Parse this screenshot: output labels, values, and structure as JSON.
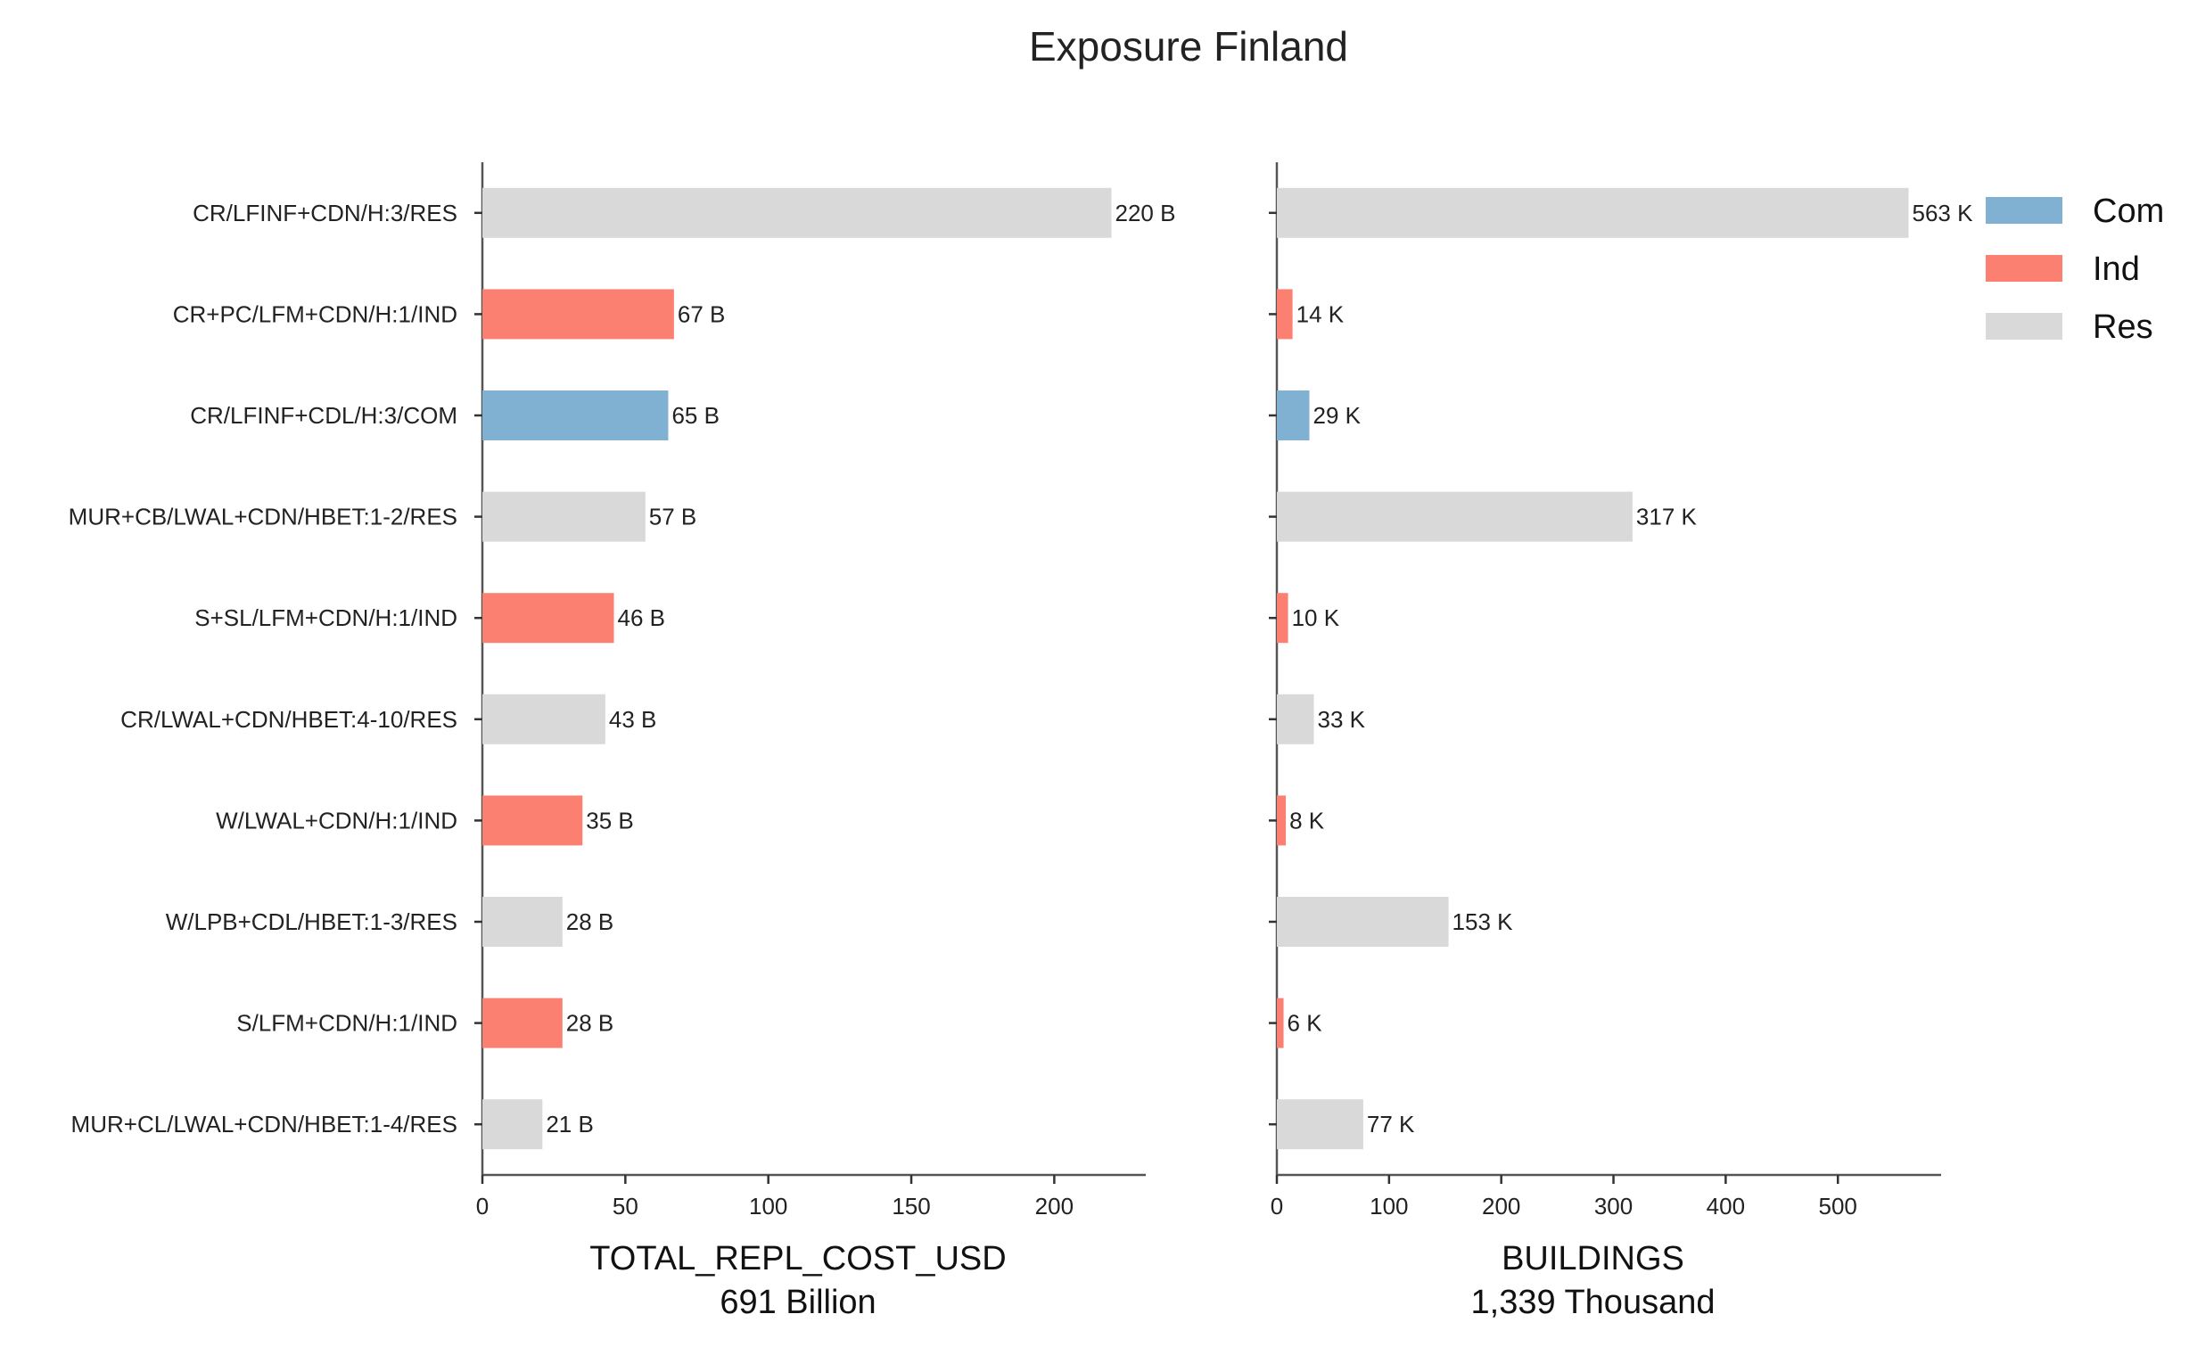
{
  "title": "Exposure Finland",
  "chart_data": [
    {
      "type": "bar",
      "orientation": "horizontal",
      "categories": [
        "CR/LFINF+CDN/H:3/RES",
        "CR+PC/LFM+CDN/H:1/IND",
        "CR/LFINF+CDL/H:3/COM",
        "MUR+CB/LWAL+CDN/HBET:1-2/RES",
        "S+SL/LFM+CDN/H:1/IND",
        "CR/LWAL+CDN/HBET:4-10/RES",
        "W/LWAL+CDN/H:1/IND",
        "W/LPB+CDL/HBET:1-3/RES",
        "S/LFM+CDN/H:1/IND",
        "MUR+CL/LWAL+CDN/HBET:1-4/RES"
      ],
      "groups": [
        "Res",
        "Ind",
        "Com",
        "Res",
        "Ind",
        "Res",
        "Ind",
        "Res",
        "Ind",
        "Res"
      ],
      "values": [
        220,
        67,
        65,
        57,
        46,
        43,
        35,
        28,
        28,
        21
      ],
      "data_labels": [
        "220 B",
        "67 B",
        "65 B",
        "57 B",
        "46 B",
        "43 B",
        "35 B",
        "28 B",
        "28 B",
        "21 B"
      ],
      "xlabel": "TOTAL_REPL_COST_USD",
      "xlabel_sub": "691 Billion",
      "xticks": [
        "0",
        "50",
        "100",
        "150",
        "200"
      ],
      "xlim": [
        0,
        232
      ]
    },
    {
      "type": "bar",
      "orientation": "horizontal",
      "categories": [
        "CR/LFINF+CDN/H:3/RES",
        "CR+PC/LFM+CDN/H:1/IND",
        "CR/LFINF+CDL/H:3/COM",
        "MUR+CB/LWAL+CDN/HBET:1-2/RES",
        "S+SL/LFM+CDN/H:1/IND",
        "CR/LWAL+CDN/HBET:4-10/RES",
        "W/LWAL+CDN/H:1/IND",
        "W/LPB+CDL/HBET:1-3/RES",
        "S/LFM+CDN/H:1/IND",
        "MUR+CL/LWAL+CDN/HBET:1-4/RES"
      ],
      "groups": [
        "Res",
        "Ind",
        "Com",
        "Res",
        "Ind",
        "Res",
        "Ind",
        "Res",
        "Ind",
        "Res"
      ],
      "values": [
        563,
        14,
        29,
        317,
        10,
        33,
        8,
        153,
        6,
        77
      ],
      "data_labels": [
        "563 K",
        "14 K",
        "29 K",
        "317 K",
        "10 K",
        "33 K",
        "8 K",
        "153 K",
        "6 K",
        "77 K"
      ],
      "xlabel": "BUILDINGS",
      "xlabel_sub": "1,339 Thousand",
      "xticks": [
        "0",
        "100",
        "200",
        "300",
        "400",
        "500"
      ],
      "xlim": [
        0,
        592
      ]
    }
  ],
  "legend": {
    "placement": "top-right",
    "items": [
      {
        "label": "Com",
        "color": "#80b1d3"
      },
      {
        "label": "Ind",
        "color": "#fb8072"
      },
      {
        "label": "Res",
        "color": "#d9d9d9"
      }
    ]
  }
}
